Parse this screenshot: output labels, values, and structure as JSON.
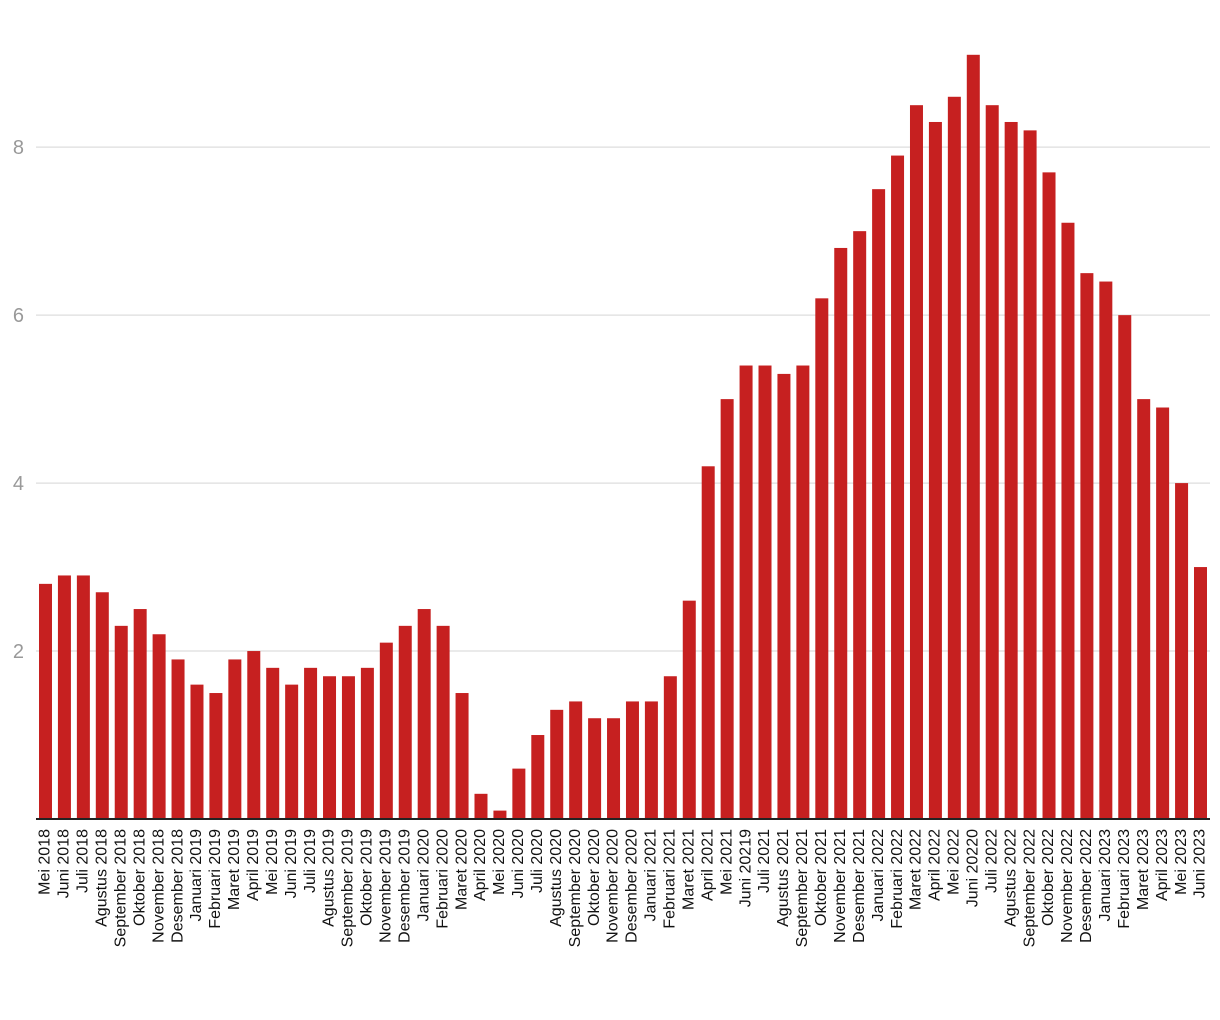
{
  "chart_data": {
    "type": "bar",
    "title": "",
    "xlabel": "",
    "ylabel": "",
    "ylim": [
      0,
      9.3
    ],
    "y_ticks": [
      2,
      4,
      6,
      8
    ],
    "grid": true,
    "legend": "none",
    "bar_color": "#c62020",
    "categories": [
      "Mei 2018",
      "Juni 2018",
      "Juli 2018",
      "Agustus 2018",
      "September 2018",
      "Oktober 2018",
      "November 2018",
      "Desember 2018",
      "Januari 2019",
      "Februari 2019",
      "Maret 2019",
      "April 2019",
      "Mei 2019",
      "Juni 2019",
      "Juli 2019",
      "Agustus 2019",
      "September 2019",
      "Oktober 2019",
      "November 2019",
      "Desember 2019",
      "Januari 2020",
      "Februari 2020",
      "Maret 2020",
      "April 2020",
      "Mei 2020",
      "Juni 2020",
      "Juli 2020",
      "Agustus 2020",
      "September 2020",
      "Oktober 2020",
      "November 2020",
      "Desember 2020",
      "Januari 2021",
      "Februari 2021",
      "Maret 2021",
      "April 2021",
      "Mei 2021",
      "Juni 20219",
      "Juli 2021",
      "Agustus 2021",
      "September 2021",
      "Oktober 2021",
      "November 2021",
      "Desember 2021",
      "Januari 2022",
      "Februari 2022",
      "Maret 2022",
      "April 2022",
      "Mei 2022",
      "Juni 20220",
      "Juli 2022",
      "Agustus 2022",
      "September 2022",
      "Oktober 2022",
      "November 2022",
      "Desember 2022",
      "Januari 2023",
      "Februari 2023",
      "Maret 2023",
      "April 2023",
      "Mei 2023",
      "Juni 2023"
    ],
    "values": [
      2.8,
      2.9,
      2.9,
      2.7,
      2.3,
      2.5,
      2.2,
      1.9,
      1.6,
      1.5,
      1.9,
      2.0,
      1.8,
      1.6,
      1.8,
      1.7,
      1.7,
      1.8,
      2.1,
      2.3,
      2.5,
      2.3,
      1.5,
      0.3,
      0.1,
      0.6,
      1.0,
      1.3,
      1.4,
      1.2,
      1.2,
      1.4,
      1.4,
      1.7,
      2.6,
      4.2,
      5.0,
      5.4,
      5.4,
      5.3,
      5.4,
      6.2,
      6.8,
      7.0,
      7.5,
      7.9,
      8.5,
      8.3,
      8.6,
      9.1,
      8.5,
      8.3,
      8.2,
      7.7,
      7.1,
      6.5,
      6.4,
      6.0,
      5.0,
      4.9,
      4.0,
      3.0
    ]
  }
}
